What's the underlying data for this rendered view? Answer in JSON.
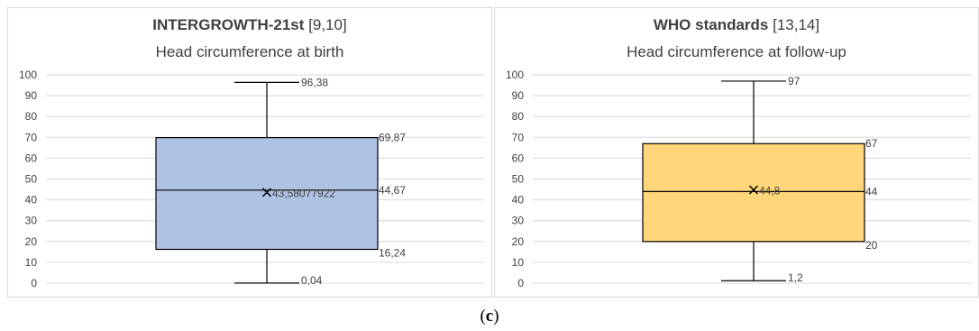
{
  "colors": {
    "left_box": "#aec3e3",
    "right_box": "#ffd679",
    "grid": "#d9d9d9",
    "axis_text": "#404040",
    "stroke": "#000000"
  },
  "caption": {
    "prefix": "(",
    "letter": "c",
    "suffix": ")"
  },
  "chart_data": [
    {
      "type": "box",
      "title_bold": "INTERGROWTH-21st",
      "title_ref": "[9,10]",
      "subtitle": "Head circumference at birth",
      "ylim": [
        0,
        100
      ],
      "yticks": [
        "0",
        "10",
        "20",
        "30",
        "40",
        "50",
        "60",
        "70",
        "80",
        "90",
        "100"
      ],
      "grid": true,
      "stats": {
        "min": 0.04,
        "q1": 16.24,
        "median": 44.67,
        "mean": 43.58077922,
        "q3": 69.87,
        "max": 96.38
      },
      "labels": {
        "min": "0,04",
        "q1": "16,24",
        "median": "44,67",
        "mean": "43,58077922",
        "q3": "69,87",
        "max": "96,38"
      },
      "color": "#aec3e3"
    },
    {
      "type": "box",
      "title_bold": "WHO standards",
      "title_ref": "[13,14]",
      "subtitle": "Head circumference at follow-up",
      "ylim": [
        0,
        100
      ],
      "yticks": [
        "0",
        "10",
        "20",
        "30",
        "40",
        "50",
        "60",
        "70",
        "80",
        "90",
        "100"
      ],
      "grid": true,
      "stats": {
        "min": 1.2,
        "q1": 20,
        "median": 44,
        "mean": 44.8,
        "q3": 67,
        "max": 97
      },
      "labels": {
        "min": "1,2",
        "q1": "20",
        "median": "44",
        "mean": "44,8",
        "q3": "67",
        "max": "97"
      },
      "color": "#ffd679"
    }
  ]
}
